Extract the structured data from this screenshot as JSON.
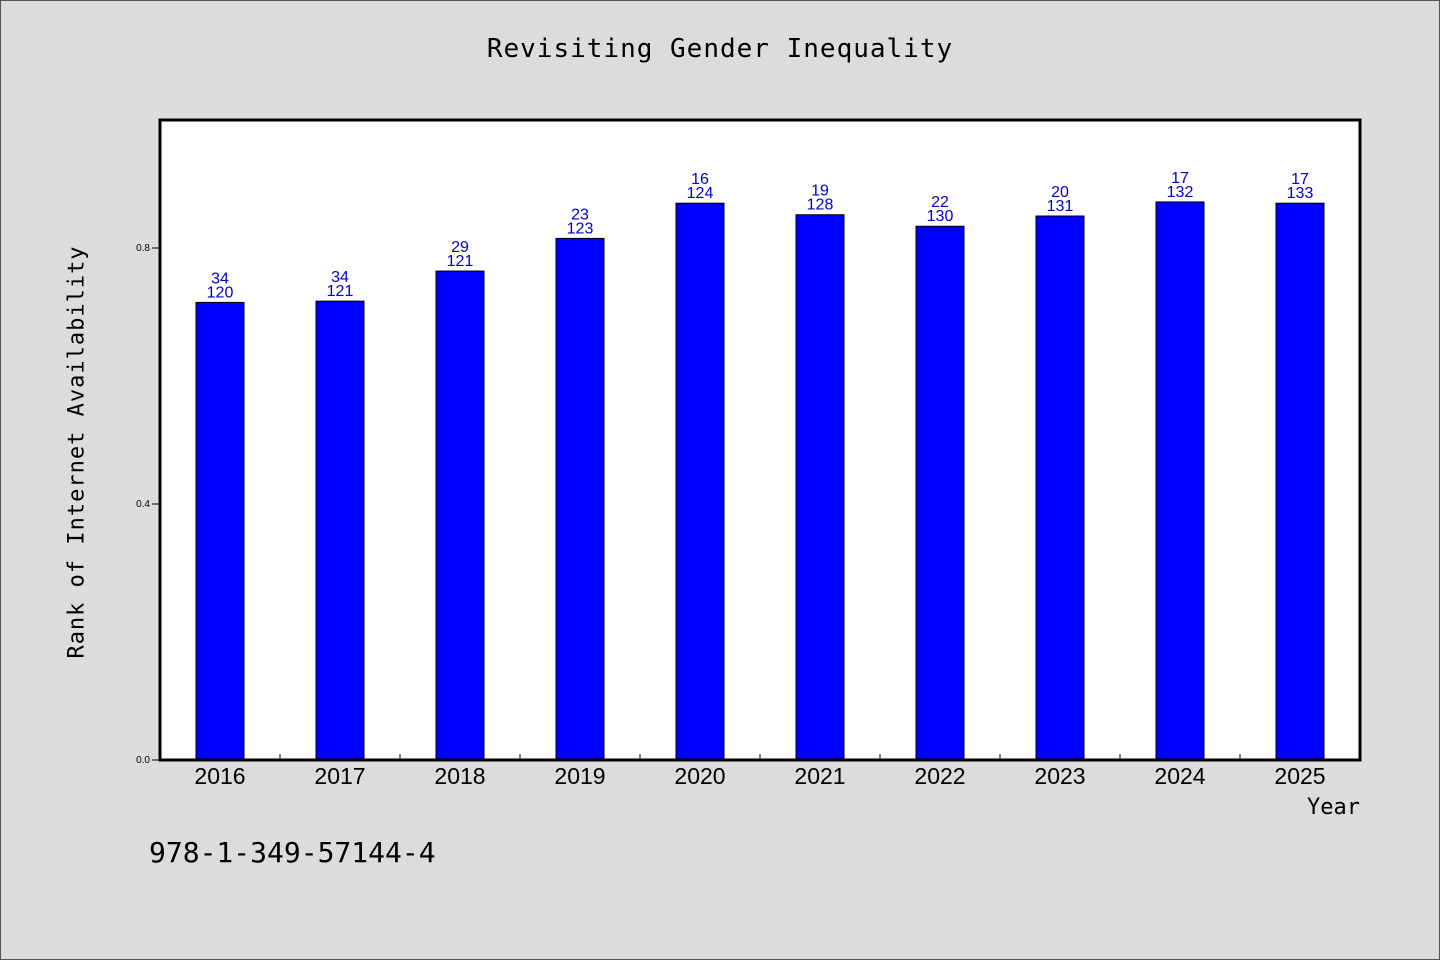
{
  "chart_data": {
    "type": "bar",
    "title": "Revisiting Gender Inequality",
    "xlabel": "Year",
    "ylabel": "Rank of Internet Availability",
    "categories": [
      "2016",
      "2017",
      "2018",
      "2019",
      "2020",
      "2021",
      "2022",
      "2023",
      "2024",
      "2025"
    ],
    "values": [
      0.715,
      0.717,
      0.764,
      0.815,
      0.87,
      0.852,
      0.834,
      0.85,
      0.872,
      0.87
    ],
    "data_labels": [
      [
        "34",
        "120"
      ],
      [
        "34",
        "121"
      ],
      [
        "29",
        "121"
      ],
      [
        "23",
        "123"
      ],
      [
        "16",
        "124"
      ],
      [
        "19",
        "128"
      ],
      [
        "22",
        "130"
      ],
      [
        "20",
        "131"
      ],
      [
        "17",
        "132"
      ],
      [
        "17",
        "133"
      ]
    ],
    "yticks": [
      "0.0",
      "0.4",
      "0.8"
    ],
    "ylim": [
      0,
      1.0
    ],
    "bar_color": "#0000ff",
    "label_color": "#0000cc",
    "grid": false
  },
  "footer": {
    "isbn": "978-1-349-57144-4"
  }
}
